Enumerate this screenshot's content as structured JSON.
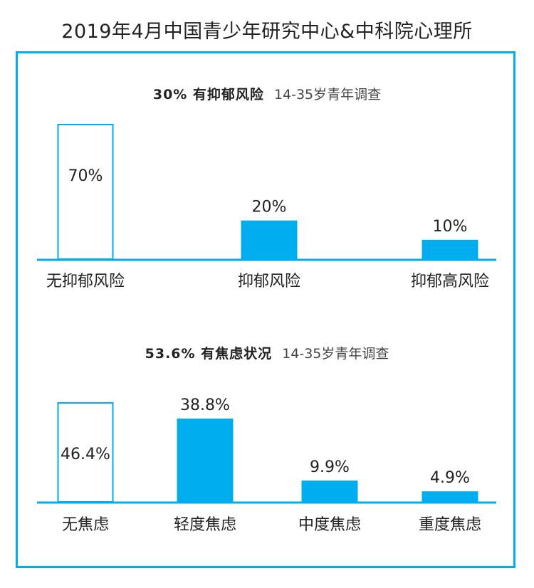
{
  "title": "2019年4月中国青少年研究中心&中科院心理所",
  "colors": {
    "accent": "#00AEEF",
    "outline_fill": "#ffffff",
    "text": "#222222"
  },
  "chart_data": [
    {
      "type": "bar",
      "title": "30% 有抑郁风险",
      "subtitle": "14-35岁青年调查",
      "categories": [
        "无抑郁风险",
        "抑郁风险",
        "抑郁高风险"
      ],
      "values": [
        70,
        20,
        10
      ],
      "value_labels": [
        "70%",
        "20%",
        "10%"
      ],
      "styles": [
        "outline",
        "filled",
        "filled"
      ],
      "ylim": [
        0,
        70
      ],
      "grid": false
    },
    {
      "type": "bar",
      "title": "53.6% 有焦虑状况",
      "subtitle": "14-35岁青年调查",
      "categories": [
        "无焦虑",
        "轻度焦虑",
        "中度焦虑",
        "重度焦虑"
      ],
      "values": [
        46.4,
        38.8,
        9.9,
        4.9
      ],
      "value_labels": [
        "46.4%",
        "38.8%",
        "9.9%",
        "4.9%"
      ],
      "styles": [
        "outline",
        "filled",
        "filled",
        "filled"
      ],
      "ylim": [
        0,
        46.4
      ],
      "grid": false
    }
  ]
}
